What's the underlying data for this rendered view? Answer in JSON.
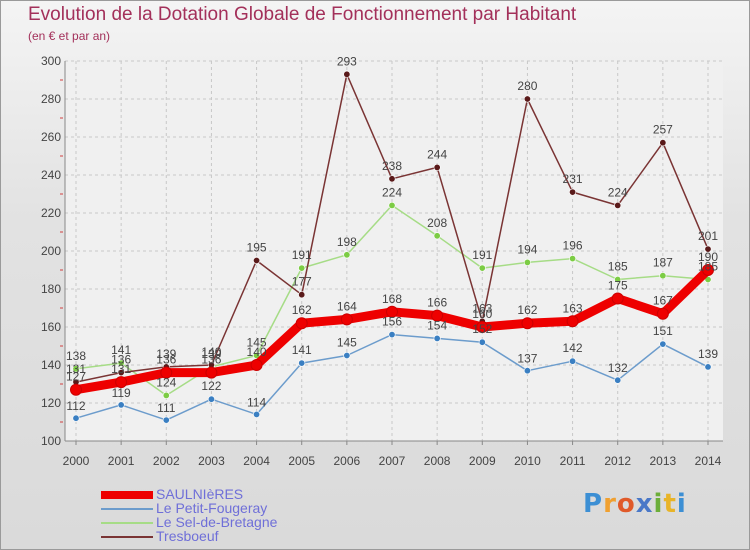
{
  "header": {
    "title": "Evolution de la Dotation Globale de Fonctionnement par Habitant",
    "subtitle": "(en € et par an)"
  },
  "logo": {
    "text": "Proxiti"
  },
  "colors": {
    "title": "#a3305a",
    "axis_text": "#444444",
    "grid": "#c8c8c8",
    "legend_text": "#6f6fd8"
  },
  "chart_data": {
    "type": "line",
    "x": [
      "2000",
      "2001",
      "2002",
      "2003",
      "2004",
      "2005",
      "2006",
      "2007",
      "2008",
      "2009",
      "2010",
      "2011",
      "2012",
      "2013",
      "2014"
    ],
    "ylim": [
      100,
      300
    ],
    "yticks": [
      100,
      120,
      140,
      160,
      180,
      200,
      220,
      240,
      260,
      280,
      300
    ],
    "grid": true,
    "legend_position": "bottom-left",
    "series": [
      {
        "name": "SAULNIèRES",
        "color": "#ee0000",
        "marker": "#ee0000",
        "width": 9,
        "values": [
          127,
          131,
          136,
          136,
          140,
          162,
          164,
          168,
          166,
          160,
          162,
          163,
          175,
          167,
          190
        ]
      },
      {
        "name": "Le Petit-Fougeray",
        "color": "#6c9ccc",
        "marker": "#3a7fc2",
        "width": 1.5,
        "values": [
          112,
          119,
          111,
          122,
          114,
          141,
          145,
          156,
          154,
          152,
          137,
          142,
          132,
          151,
          139
        ]
      },
      {
        "name": "Le Sel-de-Bretagne",
        "color": "#a6dc86",
        "marker": "#7ccc44",
        "width": 1.5,
        "values": [
          138,
          141,
          124,
          139,
          145,
          191,
          198,
          224,
          208,
          191,
          194,
          196,
          185,
          187,
          185
        ]
      },
      {
        "name": "Tresboeuf",
        "color": "#7a3434",
        "marker": "#5a1a1a",
        "width": 1.5,
        "values": [
          131,
          136,
          139,
          140,
          195,
          177,
          293,
          238,
          244,
          163,
          280,
          231,
          224,
          257,
          201
        ]
      }
    ]
  }
}
